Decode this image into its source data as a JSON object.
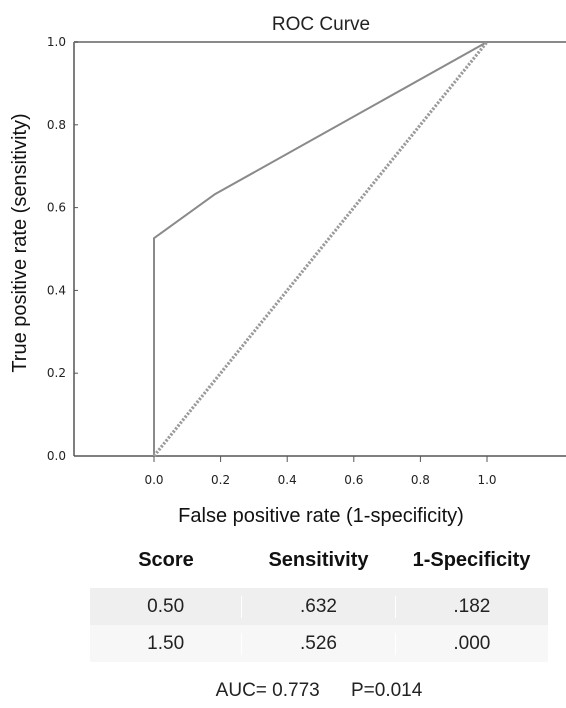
{
  "chart_data": {
    "type": "line",
    "title": "ROC Curve",
    "xlabel": "False positive rate (1-specificity)",
    "ylabel": "True positive rate (sensitivity)",
    "xlim": [
      0,
      1
    ],
    "ylim": [
      0,
      1
    ],
    "x_ticks": [
      "0.0",
      "0.2",
      "0.4",
      "0.6",
      "0.8",
      "1.0"
    ],
    "y_ticks": [
      "0.0",
      "0.2",
      "0.4",
      "0.6",
      "0.8",
      "1.0"
    ],
    "grid": false,
    "series": [
      {
        "style": "solid",
        "color": "#8a8a8a",
        "points": [
          [
            0,
            0
          ],
          [
            0,
            0.526
          ],
          [
            0.182,
            0.632
          ],
          [
            1,
            1
          ]
        ]
      },
      {
        "style": "dotted",
        "color": "#9a9a9a",
        "points": [
          [
            0,
            0
          ],
          [
            1,
            1
          ]
        ]
      }
    ]
  },
  "table": {
    "headers": [
      "Score",
      "Sensitivity",
      "1-Specificity"
    ],
    "rows": [
      [
        "0.50",
        ".632",
        ".182"
      ],
      [
        "1.50",
        ".526",
        ".000"
      ]
    ]
  },
  "stats": {
    "auc": "AUC= 0.773",
    "p": "P=0.014"
  }
}
